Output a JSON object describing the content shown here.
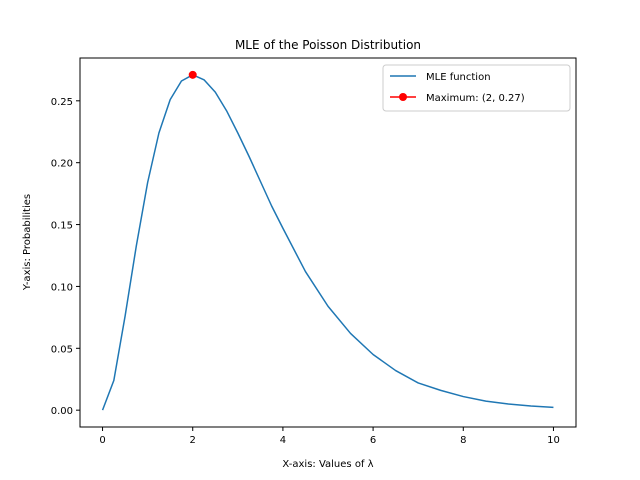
{
  "chart_data": {
    "type": "line",
    "title": "MLE of the Poisson Distribution",
    "xlabel": "X-axis: Values of λ",
    "ylabel": "Y-axis: Probabilities",
    "xlim": [
      -0.5,
      10.5
    ],
    "ylim": [
      -0.0136,
      0.2846
    ],
    "xticks": [
      0,
      2,
      4,
      6,
      8,
      10
    ],
    "xtick_labels": [
      "0",
      "2",
      "4",
      "6",
      "8",
      "10"
    ],
    "yticks": [
      0.0,
      0.05,
      0.1,
      0.15,
      0.2,
      0.25
    ],
    "ytick_labels": [
      "0.00",
      "0.05",
      "0.10",
      "0.15",
      "0.20",
      "0.25"
    ],
    "grid": false,
    "legend": "top-right",
    "series": [
      {
        "name": "MLE function",
        "color": "#1f77b4",
        "x": [
          0,
          0.25,
          0.5,
          0.75,
          1,
          1.25,
          1.5,
          1.75,
          2,
          2.25,
          2.5,
          2.75,
          3,
          3.25,
          3.5,
          3.75,
          4,
          4.5,
          5,
          5.5,
          6,
          6.5,
          7,
          7.5,
          8,
          8.5,
          9,
          9.5,
          10
        ],
        "y": [
          0.0,
          0.024,
          0.076,
          0.133,
          0.184,
          0.224,
          0.251,
          0.266,
          0.271,
          0.267,
          0.257,
          0.242,
          0.224,
          0.205,
          0.185,
          0.165,
          0.147,
          0.112,
          0.084,
          0.062,
          0.045,
          0.032,
          0.022,
          0.016,
          0.011,
          0.0073,
          0.005,
          0.0034,
          0.0023
        ]
      },
      {
        "name": "Maximum: (2, 0.27)",
        "color": "#ff0000",
        "x": [
          2
        ],
        "y": [
          0.271
        ],
        "marker": "circle"
      }
    ]
  }
}
